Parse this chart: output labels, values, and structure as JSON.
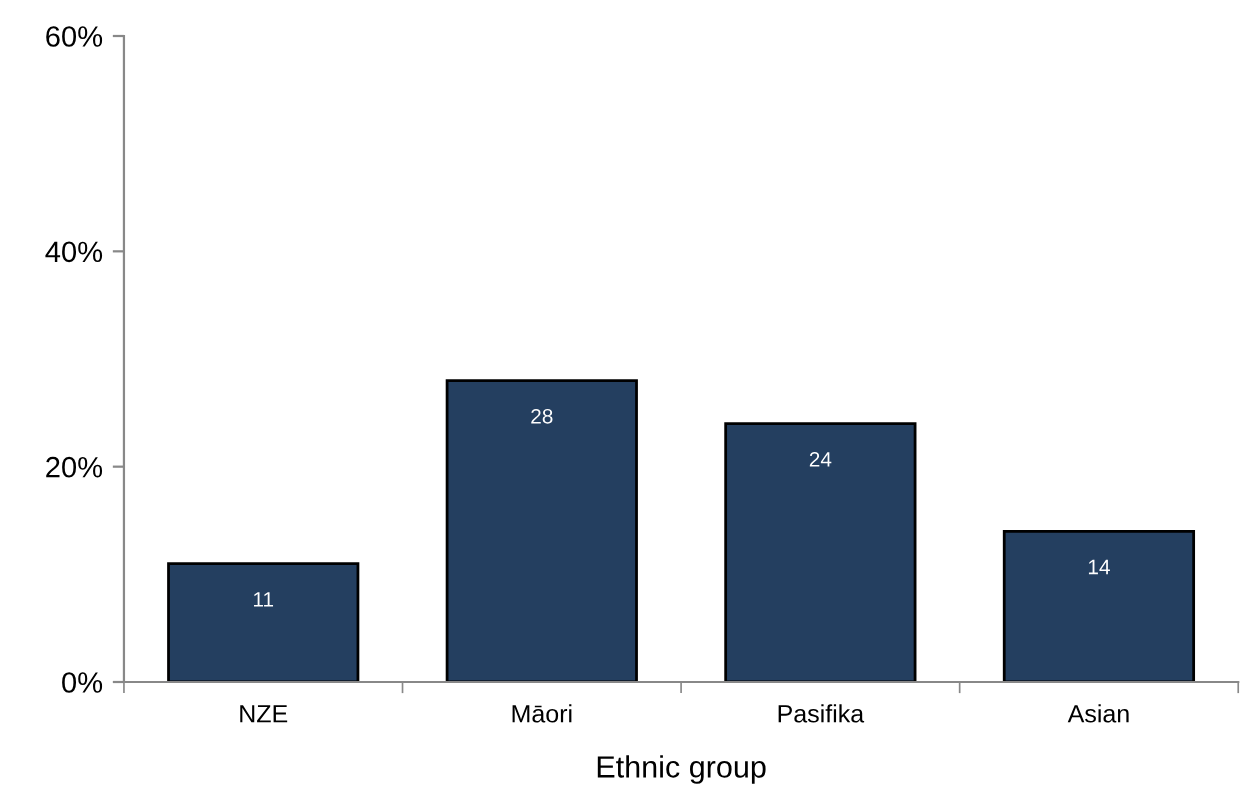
{
  "chart_data": {
    "type": "bar",
    "xlabel": "Ethnic group",
    "categories": [
      "NZE",
      "Māori",
      "Pasifika",
      "Asian"
    ],
    "values": [
      11,
      28,
      24,
      14
    ],
    "color": "#243f60",
    "data_labels": true,
    "ylim": [
      0,
      60
    ],
    "yticks": [
      {
        "value": 0,
        "label": "0%"
      },
      {
        "value": 20,
        "label": "20%"
      },
      {
        "value": 40,
        "label": "40%"
      },
      {
        "value": 60,
        "label": "60%"
      }
    ],
    "grid": false,
    "legend": false
  }
}
